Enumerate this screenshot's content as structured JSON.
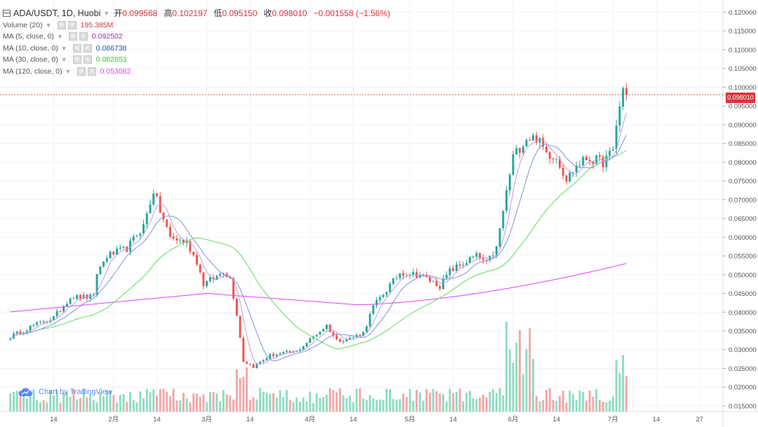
{
  "chart_data": {
    "type": "candlestick",
    "symbol_line": "ADA/USDT, 1D, Huobi",
    "ohlc": {
      "open_label": "开",
      "open": "0.099568",
      "high_label": "高",
      "high": "0.102197",
      "low_label": "低",
      "low": "0.095150",
      "close_label": "收",
      "close": "0.098010",
      "change": "−0.001558 (−1.56%)"
    },
    "indicators": [
      {
        "label": "Volume (20)",
        "value": "195.385M",
        "color": "#e0323d"
      },
      {
        "label": "MA (5, close, 0)",
        "value": "0.092502",
        "color": "#9c27b0"
      },
      {
        "label": "MA (10, close, 0)",
        "value": "0.086738",
        "color": "#1e4fb4"
      },
      {
        "label": "MA (30, close, 0)",
        "value": "0.082853",
        "color": "#2bd02b"
      },
      {
        "label": "MA (120, close, 0)",
        "value": "0.053082",
        "color": "#e040fb"
      }
    ],
    "last_price": "0.098010",
    "y_ticks": [
      "0.120000",
      "0.115000",
      "0.110000",
      "0.105000",
      "0.100000",
      "0.095000",
      "0.090000",
      "0.085000",
      "0.080000",
      "0.075000",
      "0.070000",
      "0.065000",
      "0.060000",
      "0.055000",
      "0.050000",
      "0.045000",
      "0.040000",
      "0.035000",
      "0.030000",
      "0.025000",
      "0.020000",
      "0.015000"
    ],
    "x_ticks": [
      {
        "label": "14",
        "day": 14
      },
      {
        "label": "2月",
        "day": 32
      },
      {
        "label": "14",
        "day": 45
      },
      {
        "label": "3月",
        "day": 60
      },
      {
        "label": "14",
        "day": 73
      },
      {
        "label": "4月",
        "day": 91
      },
      {
        "label": "14",
        "day": 104
      },
      {
        "label": "5月",
        "day": 121
      },
      {
        "label": "14",
        "day": 134
      },
      {
        "label": "6月",
        "day": 152
      },
      {
        "label": "14",
        "day": 165
      },
      {
        "label": "7月",
        "day": 182
      },
      {
        "label": "14",
        "day": 195
      },
      {
        "label": "27",
        "day": 208
      }
    ],
    "ylim": [
      0.0135,
      0.1225
    ],
    "xlim": [
      0,
      215
    ],
    "candles_anchor_close": [
      [
        1,
        0.0335
      ],
      [
        8,
        0.0365
      ],
      [
        14,
        0.0385
      ],
      [
        19,
        0.044
      ],
      [
        26,
        0.044
      ],
      [
        27,
        0.0505
      ],
      [
        30,
        0.055
      ],
      [
        36,
        0.057
      ],
      [
        41,
        0.063
      ],
      [
        44,
        0.0725
      ],
      [
        46,
        0.067
      ],
      [
        49,
        0.06
      ],
      [
        54,
        0.0585
      ],
      [
        57,
        0.0535
      ],
      [
        59,
        0.0475
      ],
      [
        63,
        0.0495
      ],
      [
        65,
        0.051
      ],
      [
        67,
        0.049
      ],
      [
        69,
        0.0395
      ],
      [
        71,
        0.027
      ],
      [
        74,
        0.0255
      ],
      [
        79,
        0.0285
      ],
      [
        87,
        0.0295
      ],
      [
        92,
        0.0335
      ],
      [
        96,
        0.0365
      ],
      [
        99,
        0.0325
      ],
      [
        103,
        0.033
      ],
      [
        107,
        0.0345
      ],
      [
        110,
        0.0415
      ],
      [
        114,
        0.046
      ],
      [
        118,
        0.0505
      ],
      [
        124,
        0.05
      ],
      [
        130,
        0.047
      ],
      [
        133,
        0.051
      ],
      [
        138,
        0.0535
      ],
      [
        141,
        0.055
      ],
      [
        144,
        0.053
      ],
      [
        147,
        0.057
      ],
      [
        150,
        0.072
      ],
      [
        152,
        0.0815
      ],
      [
        156,
        0.0865
      ],
      [
        159,
        0.0865
      ],
      [
        162,
        0.0825
      ],
      [
        165,
        0.0815
      ],
      [
        168,
        0.0755
      ],
      [
        171,
        0.079
      ],
      [
        174,
        0.081
      ],
      [
        177,
        0.0805
      ],
      [
        179,
        0.08
      ],
      [
        182,
        0.083
      ],
      [
        183,
        0.09
      ],
      [
        185,
        0.0995
      ],
      [
        186,
        0.098
      ]
    ],
    "volume_series_color_up": "#8fdcc2",
    "volume_series_color_down": "#f3a7a8",
    "up_color": "#26a69a",
    "down_color": "#ef5350"
  },
  "watermark": {
    "text": "Chart by TradingView"
  }
}
